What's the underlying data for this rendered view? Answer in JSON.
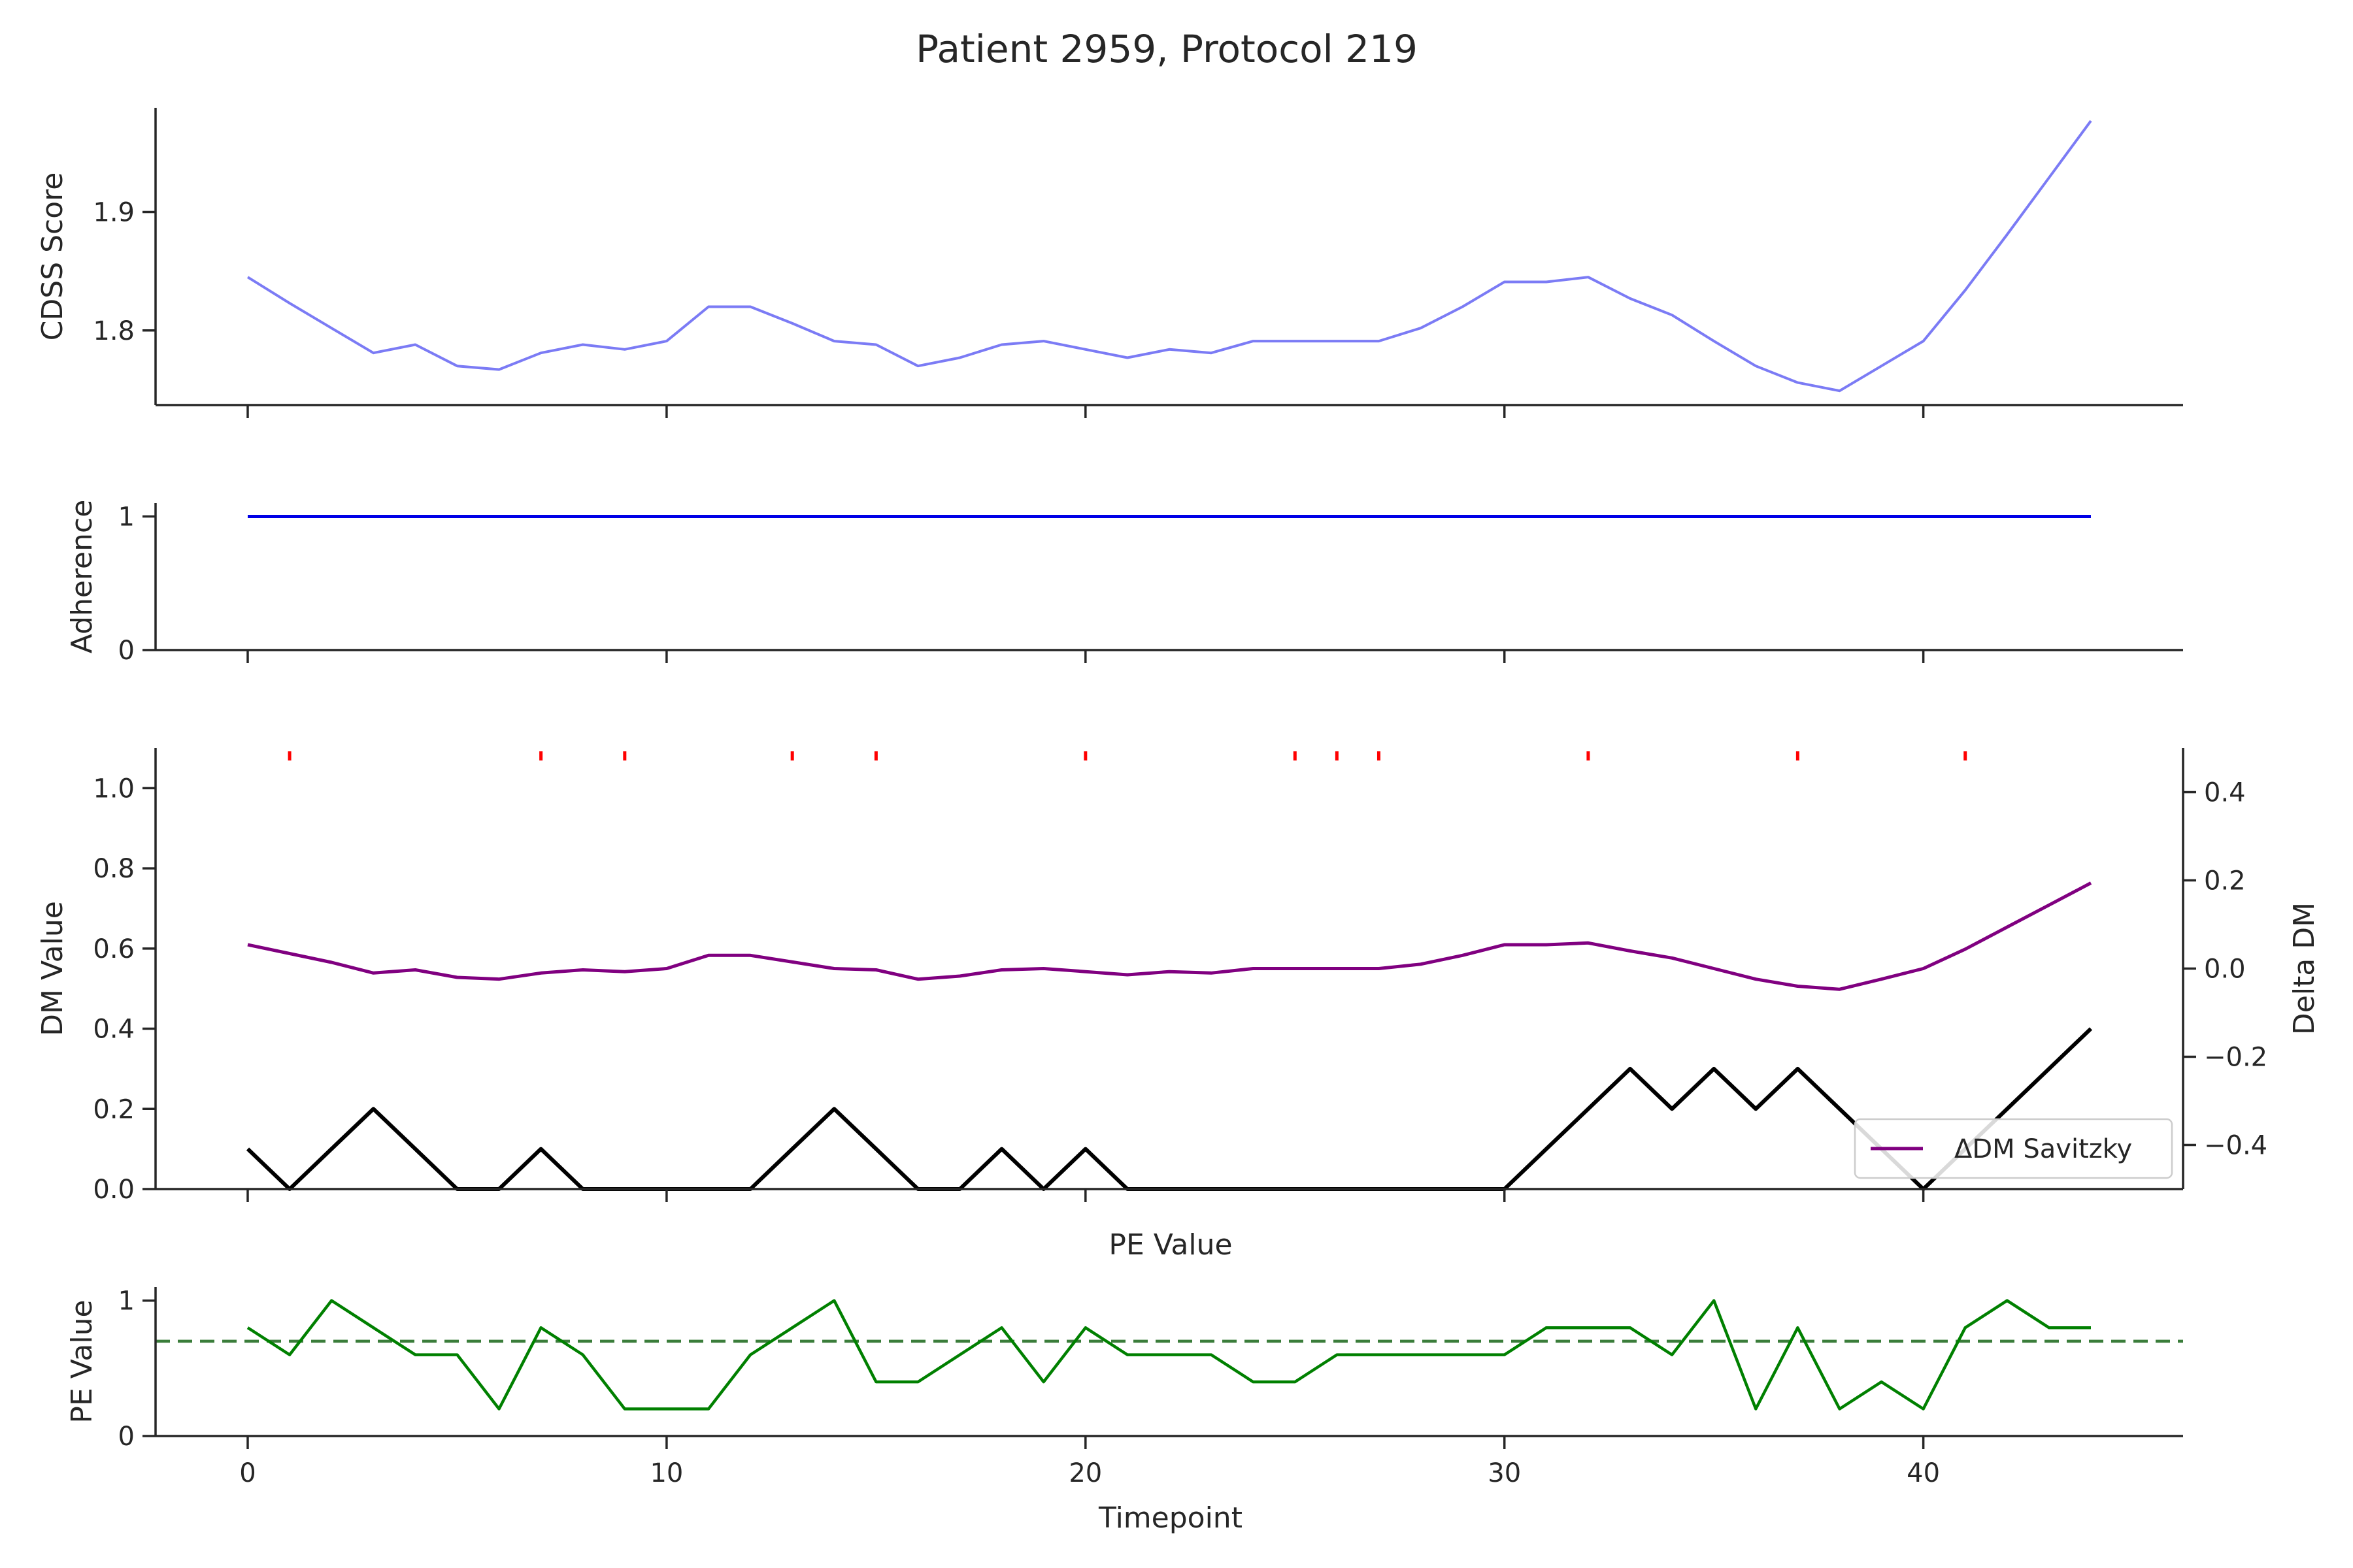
{
  "figure": {
    "title": "Patient 2959, Protocol 219"
  },
  "chart_data": [
    {
      "id": "cdss",
      "type": "line",
      "ylabel": "CDSS Score",
      "ylim": [
        1.737,
        1.988
      ],
      "xlim": [
        -2.2,
        46.2
      ],
      "yticks": [
        1.8,
        1.9
      ],
      "ytick_labels": [
        "1.8",
        "1.9"
      ],
      "grid": false,
      "series": [
        {
          "color": "#7b7bf5",
          "x": [
            0,
            1,
            2,
            3,
            4,
            5,
            6,
            7,
            8,
            9,
            10,
            11,
            12,
            13,
            14,
            15,
            16,
            17,
            18,
            19,
            20,
            21,
            22,
            23,
            24,
            25,
            26,
            27,
            28,
            29,
            30,
            31,
            32,
            33,
            34,
            35,
            36,
            37,
            38,
            39,
            40,
            41,
            42,
            43,
            44
          ],
          "y": [
            1.845,
            1.823,
            1.802,
            1.781,
            1.788,
            1.77,
            1.767,
            1.781,
            1.788,
            1.784,
            1.791,
            1.82,
            1.82,
            1.806,
            1.791,
            1.788,
            1.77,
            1.777,
            1.788,
            1.791,
            1.784,
            1.777,
            1.784,
            1.781,
            1.791,
            1.791,
            1.791,
            1.791,
            1.802,
            1.82,
            1.841,
            1.841,
            1.845,
            1.827,
            1.813,
            1.791,
            1.77,
            1.756,
            1.749,
            1.77,
            1.791,
            1.834,
            1.881,
            1.929,
            1.977
          ]
        }
      ]
    },
    {
      "id": "adherence",
      "type": "line",
      "ylabel": "Adherence",
      "ylim": [
        0,
        1.1
      ],
      "yticks": [
        0,
        1
      ],
      "ytick_labels": [
        "0",
        "1"
      ],
      "grid": false,
      "series": [
        {
          "color": "#0000e6",
          "x": [
            0,
            44
          ],
          "y": [
            1,
            1
          ]
        }
      ]
    },
    {
      "id": "dm",
      "type": "line",
      "ylabel": "DM Value",
      "ylim": [
        0,
        1.1
      ],
      "yticks": [
        0.0,
        0.2,
        0.4,
        0.6,
        0.8,
        1.0
      ],
      "ytick_labels": [
        "0.0",
        "0.2",
        "0.4",
        "0.6",
        "0.8",
        "1.0"
      ],
      "grid": false,
      "series": [
        {
          "color": "#000000",
          "x": [
            0,
            1,
            2,
            3,
            4,
            5,
            6,
            7,
            8,
            9,
            10,
            11,
            12,
            13,
            14,
            15,
            16,
            17,
            18,
            19,
            20,
            21,
            22,
            23,
            24,
            25,
            26,
            27,
            28,
            29,
            30,
            31,
            32,
            33,
            34,
            35,
            36,
            37,
            38,
            39,
            40,
            41,
            42,
            43,
            44
          ],
          "y": [
            0.1,
            0.0,
            0.1,
            0.2,
            0.1,
            0.0,
            0.0,
            0.1,
            0.0,
            0.0,
            0.0,
            0.0,
            0.0,
            0.1,
            0.2,
            0.1,
            0.0,
            0.0,
            0.1,
            0.0,
            0.1,
            0.0,
            0.0,
            0.0,
            0.0,
            0.0,
            0.0,
            0.0,
            0.0,
            0.0,
            0.0,
            0.1,
            0.2,
            0.3,
            0.2,
            0.3,
            0.2,
            0.3,
            0.2,
            0.1,
            0.0,
            0.1,
            0.2,
            0.3,
            0.4
          ]
        }
      ],
      "event_markers": {
        "color": "#ff0000",
        "x": [
          1,
          7,
          9,
          13,
          15,
          20,
          25,
          26,
          27,
          32,
          37,
          41
        ]
      },
      "secondary_axis": {
        "ylabel": "Delta DM",
        "ylim": [
          -0.5,
          0.5
        ],
        "yticks": [
          -0.4,
          -0.2,
          0.0,
          0.2,
          0.4
        ],
        "ytick_labels": [
          "−0.4",
          "−0.2",
          "0.0",
          "0.2",
          "0.4"
        ],
        "series": [
          {
            "name": "ΔDM Savitzky",
            "color": "#800080",
            "x": [
              0,
              1,
              2,
              3,
              4,
              5,
              6,
              7,
              8,
              9,
              10,
              11,
              12,
              13,
              14,
              15,
              16,
              17,
              18,
              19,
              20,
              21,
              22,
              23,
              24,
              25,
              26,
              27,
              28,
              29,
              30,
              31,
              32,
              33,
              34,
              35,
              36,
              37,
              38,
              39,
              40,
              41,
              42,
              43,
              44
            ],
            "y": [
              0.054,
              0.034,
              0.014,
              -0.01,
              -0.003,
              -0.02,
              -0.024,
              -0.01,
              -0.003,
              -0.007,
              0.0,
              0.03,
              0.03,
              0.015,
              0.0,
              -0.003,
              -0.024,
              -0.017,
              -0.003,
              0.0,
              -0.007,
              -0.014,
              -0.007,
              -0.01,
              0.0,
              0.0,
              0.0,
              0.0,
              0.01,
              0.03,
              0.054,
              0.054,
              0.058,
              0.04,
              0.024,
              0.0,
              -0.024,
              -0.04,
              -0.047,
              -0.024,
              0.0,
              0.044,
              0.094,
              0.144,
              0.194
            ]
          }
        ],
        "legend": {
          "placement": "lower-right",
          "entries": [
            "ΔDM Savitzky"
          ]
        }
      }
    },
    {
      "id": "pe",
      "type": "line",
      "title": "PE Value",
      "ylabel": "PE Value",
      "xlabel": "Timepoint",
      "ylim": [
        0,
        1.1
      ],
      "yticks": [
        0,
        1
      ],
      "ytick_labels": [
        "0",
        "1"
      ],
      "xticks": [
        0,
        10,
        20,
        30,
        40
      ],
      "xtick_labels": [
        "0",
        "10",
        "20",
        "30",
        "40"
      ],
      "grid": false,
      "series": [
        {
          "color": "#008000",
          "x": [
            0,
            1,
            2,
            3,
            4,
            5,
            6,
            7,
            8,
            9,
            10,
            11,
            12,
            13,
            14,
            15,
            16,
            17,
            18,
            19,
            20,
            21,
            22,
            23,
            24,
            25,
            26,
            27,
            28,
            29,
            30,
            31,
            32,
            33,
            34,
            35,
            36,
            37,
            38,
            39,
            40,
            41,
            42,
            43,
            44
          ],
          "y": [
            0.8,
            0.6,
            1.0,
            0.8,
            0.6,
            0.6,
            0.2,
            0.8,
            0.6,
            0.2,
            0.2,
            0.2,
            0.6,
            0.8,
            1.0,
            0.4,
            0.4,
            0.6,
            0.8,
            0.4,
            0.8,
            0.6,
            0.6,
            0.6,
            0.4,
            0.4,
            0.6,
            0.6,
            0.6,
            0.6,
            0.6,
            0.8,
            0.8,
            0.8,
            0.6,
            1.0,
            0.2,
            0.8,
            0.2,
            0.4,
            0.2,
            0.8,
            1.0,
            0.8,
            0.8
          ]
        }
      ],
      "reference_line": {
        "y": 0.7,
        "style": "dashed",
        "color": "#3a7d3a"
      }
    }
  ]
}
